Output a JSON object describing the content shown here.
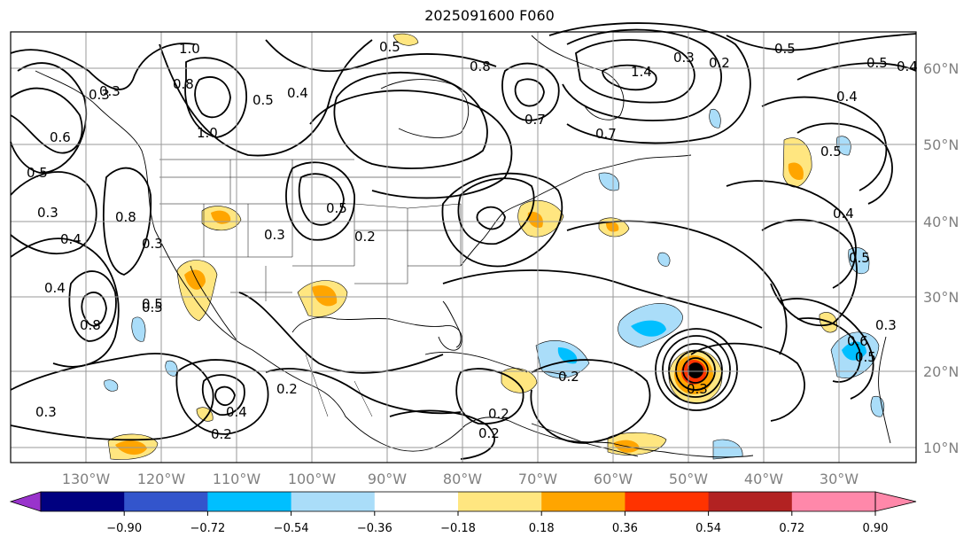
{
  "title": "2025091600 F060",
  "map": {
    "lon_labels": [
      "130°W",
      "120°W",
      "110°W",
      "100°W",
      "90°W",
      "80°W",
      "70°W",
      "60°W",
      "50°W",
      "40°W",
      "30°W"
    ],
    "lat_labels": [
      "60°N",
      "50°N",
      "40°N",
      "30°N",
      "20°N",
      "10°N"
    ]
  },
  "contour_labels": [
    "1.0",
    "0.8",
    "0.3",
    "0.5",
    "0.4",
    "0.6",
    "0.3",
    "0.4",
    "0.8",
    "0.5",
    "1.0",
    "0.5",
    "0.4",
    "0.8",
    "0.3",
    "0.2",
    "0.2",
    "0.3",
    "0.4",
    "0.2",
    "0.3",
    "0.5",
    "0.8",
    "1.4",
    "0.7",
    "0.7",
    "0.3",
    "0.2",
    "0.5",
    "0.5",
    "0.4",
    "0.4",
    "0.5",
    "0.4",
    "0.5",
    "0.5",
    "0.2",
    "0.2",
    "0.3",
    "0.3",
    "0.6",
    "0.2",
    "0.5",
    "0.5",
    "0.3"
  ],
  "colorbar": {
    "colors": [
      "#9933cc",
      "#000080",
      "#3355cc",
      "#00bfff",
      "#aaddf9",
      "#ffffff",
      "#ffe680",
      "#ffa500",
      "#ff3300",
      "#b22222",
      "#ff88aa",
      "#ff88aa"
    ],
    "tick_labels": [
      "−0.90",
      "−0.72",
      "−0.54",
      "−0.36",
      "−0.18",
      "0.18",
      "0.36",
      "0.54",
      "0.72",
      "0.90"
    ]
  }
}
